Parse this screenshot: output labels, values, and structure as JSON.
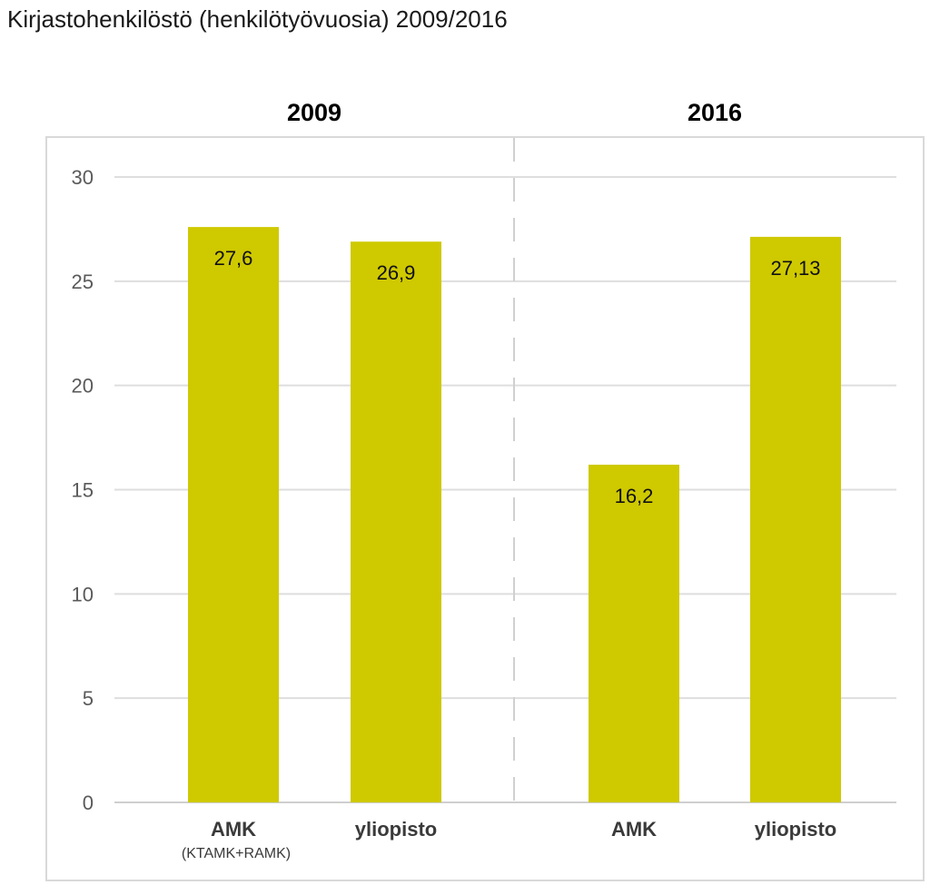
{
  "chart_data": {
    "type": "bar",
    "title": "Kirjastohenkilöstö (henkilötyövuosia) 2009/2016",
    "ylim": [
      0,
      30
    ],
    "yticks": [
      0,
      5,
      10,
      15,
      20,
      25,
      30
    ],
    "grid": true,
    "bar_color": "#cfc900",
    "groups": [
      {
        "label": "2009",
        "bars": [
          {
            "category": "AMK",
            "sublabel": "(KTAMK+RAMK)",
            "value": 27.6,
            "value_label": "27,6"
          },
          {
            "category": "yliopisto",
            "sublabel": "",
            "value": 26.9,
            "value_label": "26,9"
          }
        ]
      },
      {
        "label": "2016",
        "bars": [
          {
            "category": "AMK",
            "sublabel": "",
            "value": 16.2,
            "value_label": "16,2"
          },
          {
            "category": "yliopisto",
            "sublabel": "",
            "value": 27.13,
            "value_label": "27,13"
          }
        ]
      }
    ]
  }
}
